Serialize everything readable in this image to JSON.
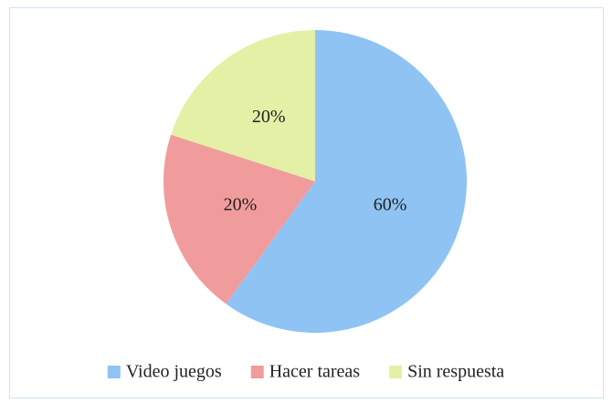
{
  "chart_data": {
    "type": "pie",
    "categories": [
      "Video juegos",
      "Hacer tareas",
      "Sin respuesta"
    ],
    "values": [
      60,
      20,
      20
    ],
    "value_labels": [
      "60%",
      "20%",
      "20%"
    ],
    "colors": [
      "#8fc3f3",
      "#f19c9c",
      "#e3f0a6"
    ],
    "legend": "bottom"
  }
}
